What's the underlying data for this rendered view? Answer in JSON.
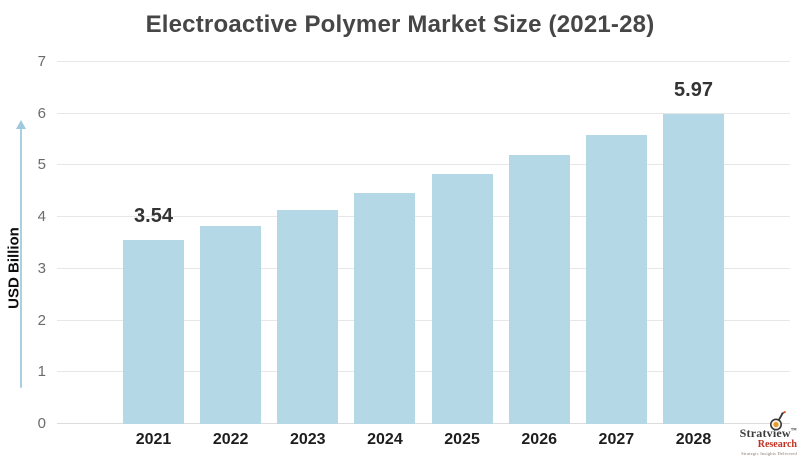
{
  "chart_data": {
    "type": "bar",
    "title": "Electroactive Polymer Market Size (2021-28)",
    "ylabel": "USD Billion",
    "xlabel": "",
    "categories": [
      "2021",
      "2022",
      "2023",
      "2024",
      "2025",
      "2026",
      "2027",
      "2028"
    ],
    "values": [
      3.54,
      3.81,
      4.13,
      4.46,
      4.82,
      5.19,
      5.57,
      5.97
    ],
    "bar_labels": [
      "3.54",
      "",
      "",
      "",
      "",
      "",
      "",
      "5.97"
    ],
    "ylim": [
      0,
      7
    ],
    "yticks": [
      0,
      1,
      2,
      3,
      4,
      5,
      6,
      7
    ],
    "grid": true,
    "legend": false,
    "bar_color": "#b5d8e6"
  },
  "branding": {
    "name": "Stratview",
    "trademark": "™",
    "division": "Research",
    "tagline": "Strategic Insights Delivered"
  },
  "colors": {
    "bar": "#b5d8e6",
    "title_text": "#464646",
    "tick_text": "#6b6b6b",
    "x_label_text": "#1d1d1d",
    "value_label_text": "#333333",
    "gridline": "#e7e7e7",
    "arrow": "#aacfe2",
    "brand_red": "#c03022",
    "brand_dark": "#3c3c3c"
  }
}
